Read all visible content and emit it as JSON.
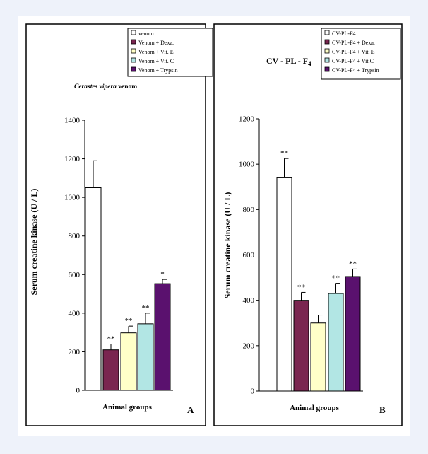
{
  "colors": {
    "page_bg": "#eef2fa",
    "venom": "#ffffff",
    "dexa": "#7a2550",
    "vit_e": "#ffffc8",
    "vit_c": "#b2e6e4",
    "trypsin": "#5a116e",
    "border": "#000000"
  },
  "chart_data": [
    {
      "panel_letter": "A",
      "type": "bar",
      "title_italic": "Cerastes vipera",
      "title_rest": " venom",
      "xlabel": "Animal groups",
      "ylabel": "Serum creatine kinase (U / L)",
      "ylim": [
        0,
        1400
      ],
      "yticks": [
        "0",
        "200",
        "400",
        "600",
        "800",
        "1000",
        "1200",
        "1400"
      ],
      "legend_position": "top-right",
      "series": [
        {
          "name": "venom",
          "value": 1050,
          "error": 140,
          "sig": "",
          "color_key": "venom"
        },
        {
          "name": "Venom + Dexa.",
          "value": 210,
          "error": 30,
          "sig": "**",
          "color_key": "dexa"
        },
        {
          "name": "Venom + Vit. E",
          "value": 298,
          "error": 35,
          "sig": "**",
          "color_key": "vit_e"
        },
        {
          "name": "Venom + Vit. C",
          "value": 345,
          "error": 55,
          "sig": "**",
          "color_key": "vit_c"
        },
        {
          "name": "Venom + Trypsin",
          "value": 553,
          "error": 22,
          "sig": "*",
          "color_key": "trypsin"
        }
      ]
    },
    {
      "panel_letter": "B",
      "type": "bar",
      "title": "CV - PL - F",
      "title_sub": "4",
      "xlabel": "Animal groups",
      "ylabel": "Serum creatine kinase (U / L)",
      "ylim": [
        0,
        1200
      ],
      "yticks": [
        "0",
        "200",
        "400",
        "600",
        "800",
        "1000",
        "1200"
      ],
      "legend_position": "top-right",
      "series": [
        {
          "name": "CV-PL-F4",
          "value": 940,
          "error": 85,
          "sig": "**",
          "color_key": "venom"
        },
        {
          "name": "CV-PL-F4 + Dexa.",
          "value": 400,
          "error": 35,
          "sig": "**",
          "color_key": "dexa"
        },
        {
          "name": "CV-PL-F4 + Vit. E",
          "value": 300,
          "error": 35,
          "sig": "",
          "color_key": "vit_e"
        },
        {
          "name": "CV-PL-F4 + Vit.C",
          "value": 430,
          "error": 45,
          "sig": "**",
          "color_key": "vit_c"
        },
        {
          "name": "CV-PL-F4 + Trypsin",
          "value": 505,
          "error": 33,
          "sig": "**",
          "color_key": "trypsin"
        }
      ]
    }
  ]
}
